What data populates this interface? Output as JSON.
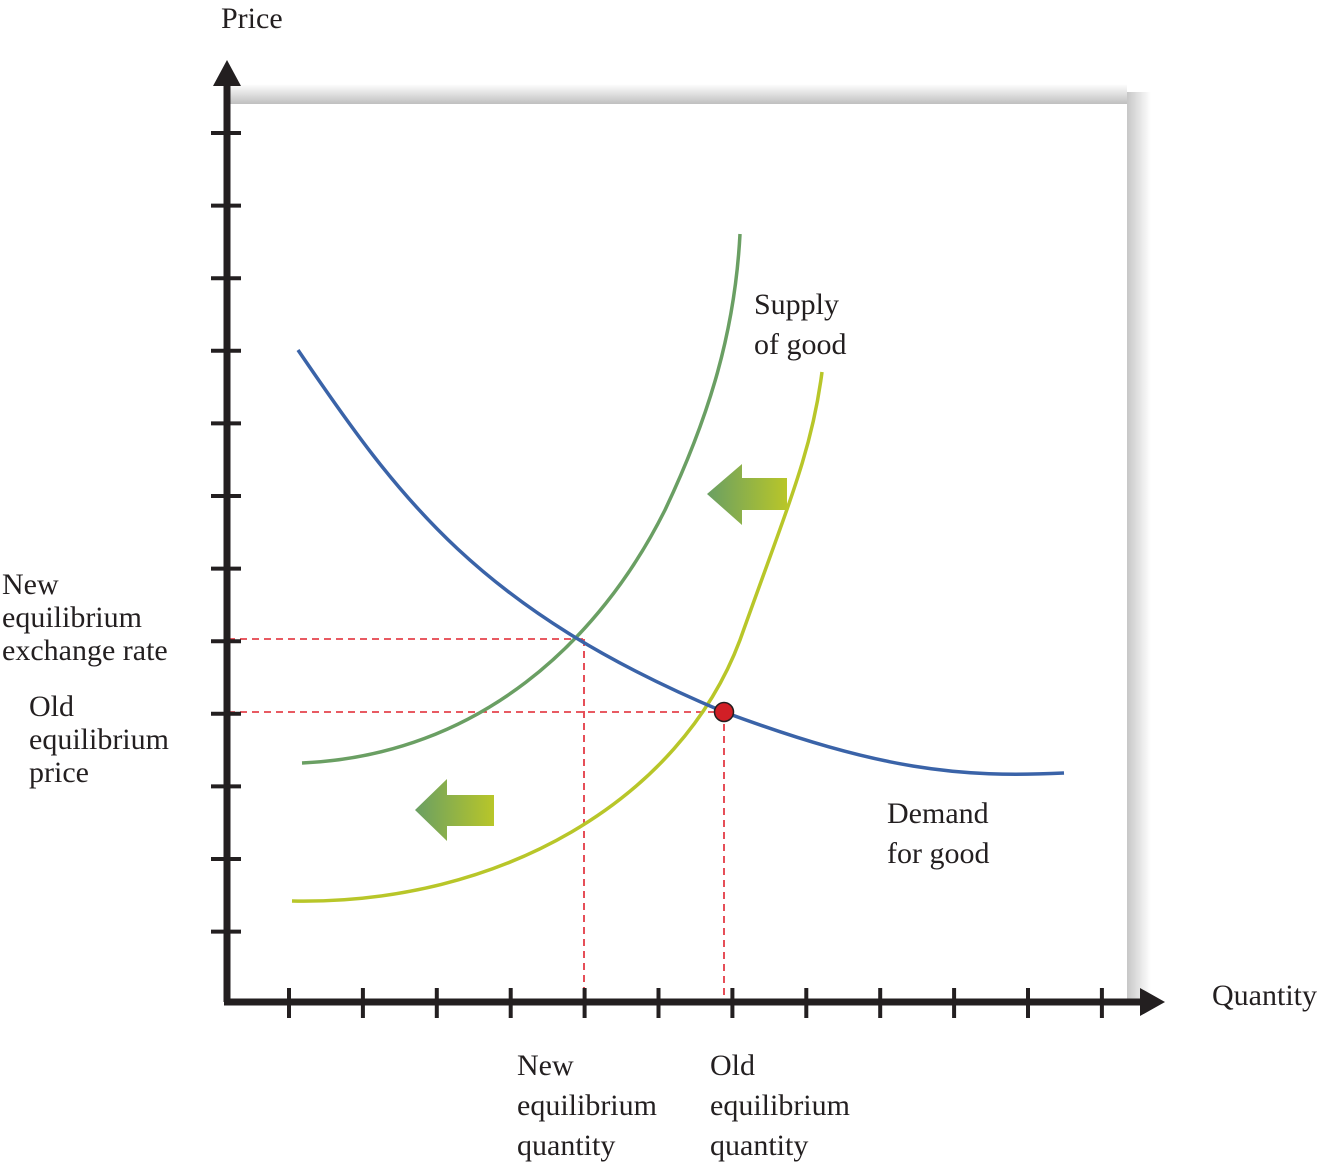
{
  "axes": {
    "y_label": "Price",
    "x_label": "Quantity"
  },
  "curves": {
    "supply": {
      "label": [
        "Supply",
        "of good"
      ],
      "color": "#6a9f63"
    },
    "new_supply_color": "#b8c629",
    "demand": {
      "label": [
        "Demand",
        "for good"
      ],
      "color": "#3a63a8"
    }
  },
  "price_labels": {
    "new": [
      "New",
      "equilibrium",
      "exchange rate"
    ],
    "old": [
      "Old",
      "equilibrium",
      "price"
    ]
  },
  "quantity_labels": {
    "new": [
      "New",
      "equilibrium",
      "quantity"
    ],
    "old": [
      "Old",
      "equilibrium",
      "quantity"
    ]
  },
  "colors": {
    "guide_lines": "#e0232f",
    "equilibrium_point": "#d11f26",
    "axis": "#231f20",
    "arrow_gradient": [
      "#6a9f63",
      "#b8c629"
    ]
  },
  "shift_arrows": {
    "direction": "left",
    "count": 2
  }
}
